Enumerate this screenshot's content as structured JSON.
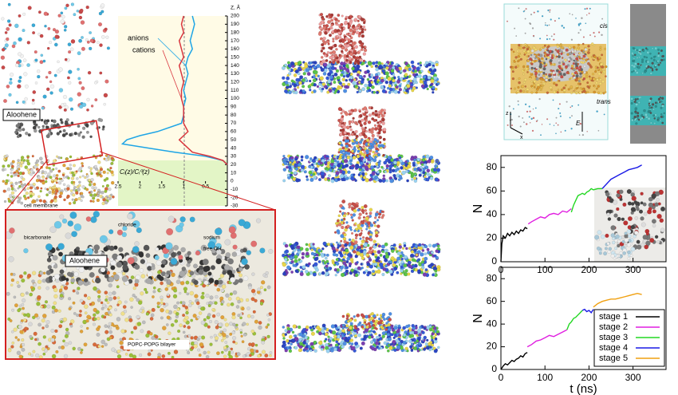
{
  "chart_data": [
    {
      "type": "profile",
      "y_label": "Z, Å",
      "x_label": "Cᵢ(z)/Cᵢ⁰(z)",
      "xlim": [
        2.5,
        0
      ],
      "xticks": [
        2.5,
        2,
        1.5,
        1,
        0.5
      ],
      "ylim": [
        -30,
        200
      ],
      "yticks": [
        200,
        190,
        180,
        170,
        160,
        150,
        140,
        130,
        120,
        110,
        100,
        90,
        80,
        70,
        60,
        50,
        40,
        30,
        20,
        10,
        0,
        -10,
        -20,
        -30
      ],
      "z": [
        200,
        190,
        180,
        170,
        160,
        150,
        140,
        130,
        120,
        110,
        100,
        90,
        80,
        70,
        60,
        55,
        50,
        45,
        40,
        35,
        30,
        25,
        20
      ],
      "series": [
        {
          "name": "anions",
          "color": "#1ea5e6",
          "values": [
            0.8,
            0.75,
            0.8,
            0.85,
            0.8,
            0.9,
            0.95,
            0.9,
            0.95,
            1.0,
            0.95,
            1.0,
            1.0,
            1.05,
            1.6,
            2.0,
            2.3,
            2.4,
            1.8,
            1.2,
            0.5,
            0.1,
            0
          ]
        },
        {
          "name": "cations",
          "color": "#d9363e",
          "values": [
            1.0,
            1.05,
            1.0,
            1.1,
            1.05,
            1.0,
            1.1,
            1.05,
            1.0,
            1.05,
            1.05,
            1.0,
            1.0,
            1.0,
            0.9,
            1.0,
            1.1,
            1.0,
            0.9,
            0.8,
            0.4,
            0.1,
            0
          ]
        }
      ]
    },
    {
      "type": "line",
      "y_label": "N",
      "xlim": [
        0,
        375
      ],
      "xticks": [
        0,
        100,
        200,
        300
      ],
      "ylim": [
        0,
        90
      ],
      "yticks": [
        0,
        20,
        40,
        60,
        80
      ],
      "series": [
        {
          "color": "#000000",
          "x": [
            0,
            2,
            5,
            10,
            15,
            20,
            25,
            30,
            35,
            40,
            45,
            50,
            55,
            60
          ],
          "values": [
            0,
            15,
            22,
            20,
            24,
            22,
            25,
            23,
            26,
            24,
            27,
            26,
            29,
            28
          ]
        },
        {
          "color": "#e01ee0",
          "x": [
            62,
            70,
            80,
            90,
            100,
            110,
            120,
            130,
            140,
            150,
            160
          ],
          "values": [
            32,
            34,
            36,
            38,
            37,
            40,
            41,
            40,
            43,
            42,
            45
          ]
        },
        {
          "color": "#22d822",
          "x": [
            160,
            165,
            170,
            175,
            180,
            185,
            190,
            195,
            200,
            205,
            210,
            220,
            230
          ],
          "values": [
            42,
            48,
            52,
            56,
            57,
            58,
            57,
            59,
            60,
            62,
            61,
            62,
            62
          ]
        },
        {
          "color": "#1a1ae6",
          "x": [
            230,
            240,
            250,
            260,
            270,
            280,
            290,
            300,
            310,
            320
          ],
          "values": [
            62,
            66,
            70,
            72,
            74,
            76,
            78,
            79,
            80,
            82
          ]
        }
      ]
    },
    {
      "type": "line",
      "y_label": "N",
      "x_label": "t (ns)",
      "xlim": [
        0,
        375
      ],
      "xticks": [
        0,
        100,
        200,
        300
      ],
      "ylim": [
        0,
        90
      ],
      "yticks": [
        0,
        20,
        40,
        60,
        80
      ],
      "legend": "lower right",
      "series": [
        {
          "name": "stage 1",
          "color": "#000000",
          "x": [
            0,
            5,
            10,
            15,
            20,
            25,
            30,
            35,
            40,
            45,
            50,
            55,
            60
          ],
          "values": [
            0,
            3,
            5,
            4,
            6,
            8,
            7,
            9,
            10,
            12,
            11,
            14,
            15
          ]
        },
        {
          "name": "stage 2",
          "color": "#e01ee0",
          "x": [
            60,
            70,
            80,
            90,
            100,
            110,
            120,
            130,
            140,
            150
          ],
          "values": [
            20,
            22,
            25,
            26,
            28,
            30,
            29,
            31,
            33,
            35
          ]
        },
        {
          "name": "stage 3",
          "color": "#22d822",
          "x": [
            150,
            155,
            160,
            165,
            170,
            175,
            180,
            185
          ],
          "values": [
            35,
            40,
            42,
            45,
            46,
            48,
            50,
            52
          ]
        },
        {
          "name": "stage 4",
          "color": "#1a1ae6",
          "x": [
            185,
            190,
            195,
            200,
            205,
            210
          ],
          "values": [
            52,
            53,
            51,
            52,
            50,
            53
          ]
        },
        {
          "name": "stage 5",
          "color": "#f0a010",
          "x": [
            210,
            220,
            230,
            240,
            250,
            260,
            270,
            280,
            290,
            300,
            310,
            320
          ],
          "values": [
            55,
            58,
            60,
            61,
            62,
            62,
            63,
            64,
            65,
            66,
            67,
            66
          ]
        }
      ]
    }
  ],
  "labels": {
    "aloohene_top": "Aloohene",
    "cell_membrane": "cell membrane",
    "bicarbonate": "bicarbonate",
    "chloride": "chloride",
    "sodium": "sodium",
    "free_oh": "free OH",
    "aloohene_zoom": "Aloohene",
    "bilayer": "POPC-POPG bilayer",
    "cis": "cis",
    "trans": "trans",
    "field": "E",
    "axis_z": "z",
    "axis_x": "x"
  }
}
